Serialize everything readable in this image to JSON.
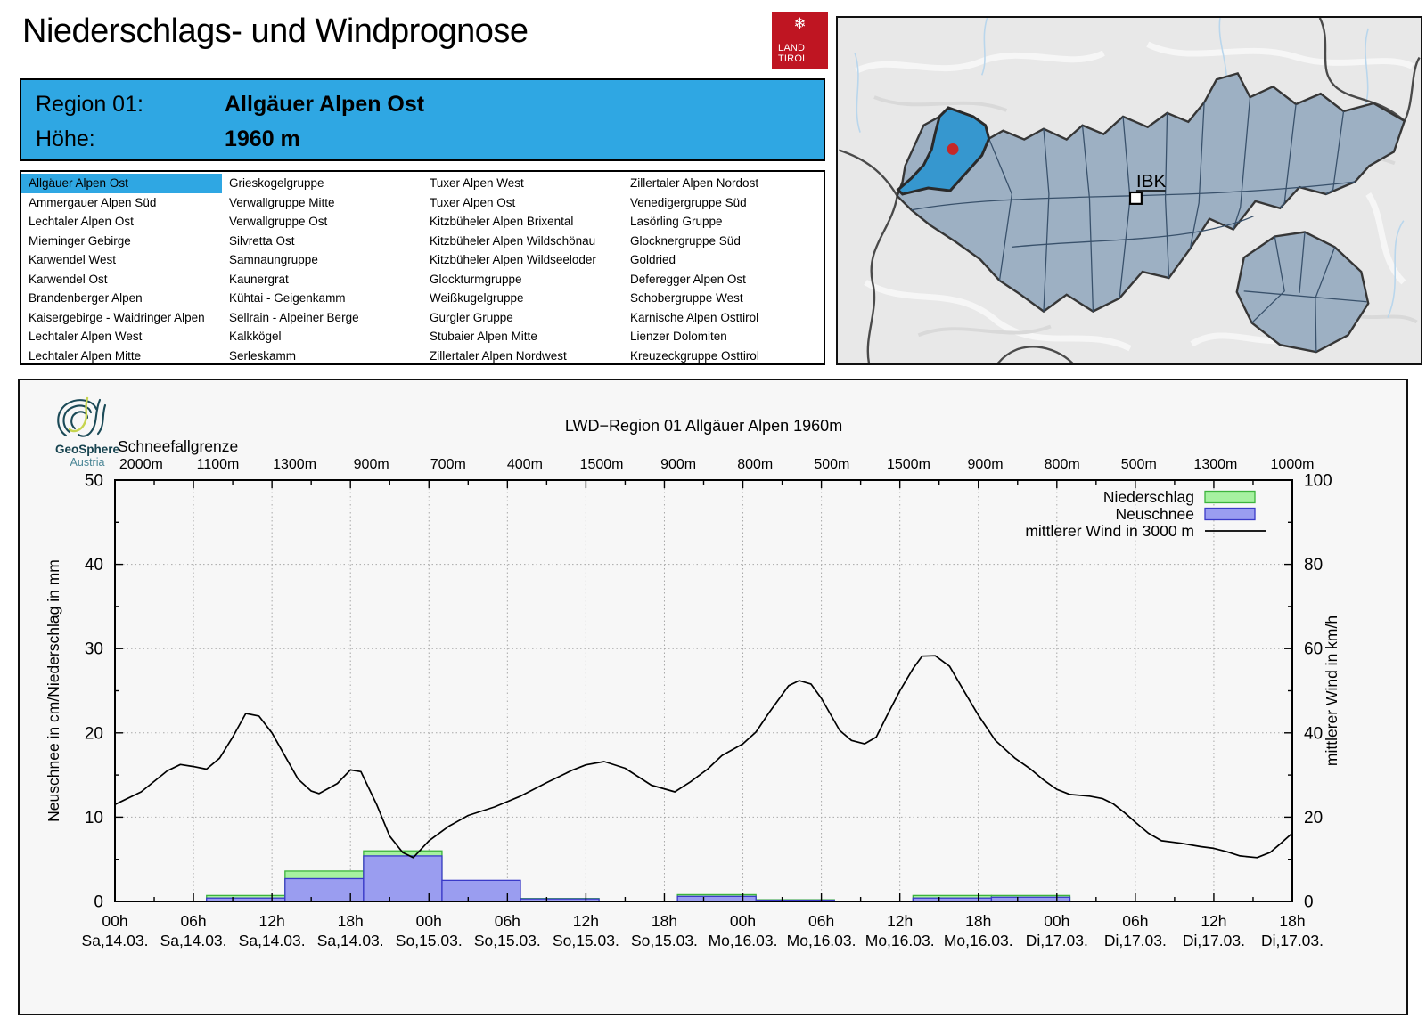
{
  "header": {
    "title": "Niederschlags- und Windprognose",
    "logo_line1": "LAND",
    "logo_line2": "TIROL",
    "logo_snowflake": "❄"
  },
  "region_info": {
    "region_label": "Region 01:",
    "region_name": "Allgäuer Alpen Ost",
    "altitude_label": "Höhe:",
    "altitude_value": "1960 m"
  },
  "region_list": {
    "selected": "Allgäuer Alpen Ost",
    "columns": [
      [
        "Allgäuer Alpen Ost",
        "Ammergauer Alpen Süd",
        "Lechtaler Alpen Ost",
        "Mieminger Gebirge",
        "Karwendel West",
        "Karwendel Ost",
        "Brandenberger Alpen",
        "Kaisergebirge - Waidringer Alpen",
        "Lechtaler Alpen West",
        "Lechtaler Alpen Mitte"
      ],
      [
        "Grieskogelgruppe",
        "Verwallgruppe Mitte",
        "Verwallgruppe Ost",
        "Silvretta Ost",
        "Samnaungruppe",
        "Kaunergrat",
        "Kühtai - Geigenkamm",
        "Sellrain - Alpeiner Berge",
        "Kalkkögel",
        "Serleskamm"
      ],
      [
        "Tuxer Alpen West",
        "Tuxer Alpen Ost",
        "Kitzbüheler Alpen Brixental",
        "Kitzbüheler Alpen Wildschönau",
        "Kitzbüheler Alpen Wildseeloder",
        "Glockturmgruppe",
        "Weißkugelgruppe",
        "Gurgler Gruppe",
        "Stubaier Alpen Mitte",
        "Zillertaler Alpen Nordwest"
      ],
      [
        "Zillertaler Alpen Nordost",
        "Venedigergruppe Süd",
        "Lasörling Gruppe",
        "Glocknergruppe Süd",
        "Goldried",
        "Deferegger Alpen Ost",
        "Schobergruppe West",
        "Karnische Alpen Osttirol",
        "Lienzer Dolomiten",
        "Kreuzeckgruppe Osttirol"
      ]
    ]
  },
  "map": {
    "city_label": "IBK"
  },
  "geosphere": {
    "line1": "GeoSphere",
    "line2": "Austria"
  },
  "chart_data": {
    "type": "bar+line",
    "title": "LWD−Region 01 Allgäuer Alpen 1960m",
    "snowline_label": "Schneefallgrenze",
    "snowline_values": [
      "2000m",
      "1100m",
      "1300m",
      "900m",
      "700m",
      "400m",
      "1500m",
      "900m",
      "800m",
      "500m",
      "1500m",
      "900m",
      "800m",
      "500m",
      "1300m",
      "1000m"
    ],
    "ylabel_left": "Neuschnee in cm/Niederschlag in mm",
    "ylabel_right": "mittlerer Wind in km/h",
    "ylim_left": [
      0,
      50
    ],
    "ylim_right": [
      0,
      100
    ],
    "yticks_left": [
      0,
      10,
      20,
      30,
      40,
      50
    ],
    "yticks_right": [
      0,
      20,
      40,
      60,
      80,
      100
    ],
    "x_hours_range": [
      0,
      90
    ],
    "grid": true,
    "legend_position": "top-right",
    "xticks": [
      {
        "time": "00h",
        "date": "Sa,14.03."
      },
      {
        "time": "06h",
        "date": "Sa,14.03."
      },
      {
        "time": "12h",
        "date": "Sa,14.03."
      },
      {
        "time": "18h",
        "date": "Sa,14.03."
      },
      {
        "time": "00h",
        "date": "So,15.03."
      },
      {
        "time": "06h",
        "date": "So,15.03."
      },
      {
        "time": "12h",
        "date": "So,15.03."
      },
      {
        "time": "18h",
        "date": "So,15.03."
      },
      {
        "time": "00h",
        "date": "Mo,16.03."
      },
      {
        "time": "06h",
        "date": "Mo,16.03."
      },
      {
        "time": "12h",
        "date": "Mo,16.03."
      },
      {
        "time": "18h",
        "date": "Mo,16.03."
      },
      {
        "time": "00h",
        "date": "Di,17.03."
      },
      {
        "time": "06h",
        "date": "Di,17.03."
      },
      {
        "time": "12h",
        "date": "Di,17.03."
      },
      {
        "time": "18h",
        "date": "Di,17.03."
      }
    ],
    "legend": [
      {
        "label": "Niederschlag",
        "type": "box",
        "key": "niederschlag"
      },
      {
        "label": "Neuschnee",
        "type": "box",
        "key": "neuschnee"
      },
      {
        "label": "mittlerer Wind in 3000 m",
        "type": "line",
        "key": "wind"
      }
    ],
    "bars": [
      {
        "start_h": 7,
        "end_h": 13,
        "niederschlag_mm": 0.7,
        "neuschnee_cm": 0.4
      },
      {
        "start_h": 13,
        "end_h": 19,
        "niederschlag_mm": 3.6,
        "neuschnee_cm": 2.7
      },
      {
        "start_h": 19,
        "end_h": 25,
        "niederschlag_mm": 6.0,
        "neuschnee_cm": 5.4
      },
      {
        "start_h": 25,
        "end_h": 31,
        "niederschlag_mm": 0,
        "neuschnee_cm": 2.5
      },
      {
        "start_h": 31,
        "end_h": 37,
        "niederschlag_mm": 0.35,
        "neuschnee_cm": 0.3
      },
      {
        "start_h": 43,
        "end_h": 49,
        "niederschlag_mm": 0.8,
        "neuschnee_cm": 0.6
      },
      {
        "start_h": 49,
        "end_h": 55,
        "niederschlag_mm": 0.2,
        "neuschnee_cm": 0.15
      },
      {
        "start_h": 61,
        "end_h": 67,
        "niederschlag_mm": 0.7,
        "neuschnee_cm": 0.4
      },
      {
        "start_h": 67,
        "end_h": 73,
        "niederschlag_mm": 0.7,
        "neuschnee_cm": 0.5
      }
    ],
    "wind_points": [
      [
        0,
        23
      ],
      [
        2,
        26
      ],
      [
        4,
        31
      ],
      [
        5,
        32.5
      ],
      [
        6,
        32
      ],
      [
        7,
        31.4
      ],
      [
        8,
        34
      ],
      [
        9,
        39
      ],
      [
        10,
        44.6
      ],
      [
        11,
        44
      ],
      [
        12,
        40
      ],
      [
        13,
        34.5
      ],
      [
        14,
        29
      ],
      [
        15,
        26.2
      ],
      [
        15.6,
        25.6
      ],
      [
        17,
        28
      ],
      [
        18,
        31.2
      ],
      [
        18.8,
        30.8
      ],
      [
        20,
        23
      ],
      [
        21,
        15.5
      ],
      [
        22,
        11.6
      ],
      [
        22.8,
        10.4
      ],
      [
        24,
        14.4
      ],
      [
        25.5,
        17.8
      ],
      [
        27,
        20.4
      ],
      [
        29,
        22.4
      ],
      [
        31,
        25
      ],
      [
        33,
        28.2
      ],
      [
        35,
        31.2
      ],
      [
        36,
        32.4
      ],
      [
        37.4,
        33.2
      ],
      [
        39,
        31.6
      ],
      [
        41,
        27.6
      ],
      [
        42.8,
        26
      ],
      [
        44,
        28.4
      ],
      [
        45.3,
        31.4
      ],
      [
        46.4,
        34.6
      ],
      [
        48,
        37.4
      ],
      [
        49,
        40.2
      ],
      [
        50,
        44.8
      ],
      [
        51.5,
        51.2
      ],
      [
        52.3,
        52.4
      ],
      [
        53.2,
        51.6
      ],
      [
        54,
        48.2
      ],
      [
        55.4,
        40.6
      ],
      [
        56.3,
        38.2
      ],
      [
        57.3,
        37.4
      ],
      [
        58.2,
        39
      ],
      [
        59,
        44
      ],
      [
        60,
        50
      ],
      [
        61,
        55.2
      ],
      [
        61.7,
        58.2
      ],
      [
        62.7,
        58.3
      ],
      [
        63.8,
        55.8
      ],
      [
        65,
        49.4
      ],
      [
        66,
        44.2
      ],
      [
        67.3,
        38.2
      ],
      [
        68.8,
        34
      ],
      [
        70,
        31.4
      ],
      [
        71,
        28.8
      ],
      [
        72,
        26.6
      ],
      [
        73,
        25.4
      ],
      [
        74.5,
        25
      ],
      [
        75.5,
        24.4
      ],
      [
        76.3,
        23.2
      ],
      [
        77.2,
        21
      ],
      [
        78,
        18.8
      ],
      [
        79,
        16.2
      ],
      [
        80,
        14.4
      ],
      [
        81.5,
        13.8
      ],
      [
        83,
        13
      ],
      [
        84,
        12.6
      ],
      [
        85,
        11.8
      ],
      [
        86,
        10.8
      ],
      [
        87.3,
        10.4
      ],
      [
        88.3,
        11.6
      ],
      [
        89.2,
        14
      ],
      [
        90,
        16.2
      ]
    ]
  },
  "colors": {
    "accent_blue": "#2fa7e3",
    "selected_region_fill": "#3697cf",
    "marker_red": "#c62828",
    "niederschlag_fill": "#a6f1a0",
    "niederschlag_stroke": "#3cb43c",
    "neuschnee_fill": "#9a9df0",
    "neuschnee_stroke": "#3a3ac8",
    "wind_line": "#000000",
    "tirol_logo_red": "#bf1522",
    "map_region_fill": "#9db0c3"
  }
}
